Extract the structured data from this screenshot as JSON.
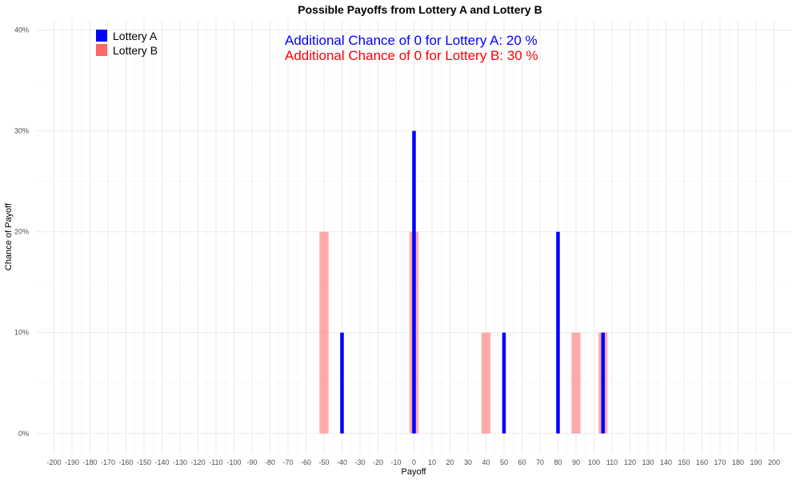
{
  "chart_data": {
    "type": "bar",
    "title": "Possible Payoffs from Lottery A and Lottery B",
    "xlabel": "Payoff",
    "ylabel": "Chance of Payoff",
    "xlim": [
      -210,
      210
    ],
    "ylim": [
      -0.02,
      0.41
    ],
    "x_ticks": [
      -200,
      -190,
      -180,
      -170,
      -160,
      -150,
      -140,
      -130,
      -120,
      -110,
      -100,
      -90,
      -80,
      -70,
      -60,
      -50,
      -40,
      -30,
      -20,
      -10,
      0,
      10,
      20,
      30,
      40,
      50,
      60,
      70,
      80,
      90,
      100,
      110,
      120,
      130,
      140,
      150,
      160,
      170,
      180,
      190,
      200
    ],
    "y_ticks": [
      0,
      0.1,
      0.2,
      0.3,
      0.4
    ],
    "y_tick_labels": [
      "0%",
      "10%",
      "20%",
      "30%",
      "40%"
    ],
    "grid": true,
    "legend_position": "top-left",
    "series": [
      {
        "name": "Lottery A",
        "color": "#0000ff",
        "points": [
          {
            "x": -40,
            "y": 0.1
          },
          {
            "x": 0,
            "y": 0.3
          },
          {
            "x": 50,
            "y": 0.1
          },
          {
            "x": 80,
            "y": 0.2
          },
          {
            "x": 105,
            "y": 0.1
          }
        ]
      },
      {
        "name": "Lottery B",
        "color": "#ff6666",
        "points": [
          {
            "x": -50,
            "y": 0.2
          },
          {
            "x": 0,
            "y": 0.2
          },
          {
            "x": 40,
            "y": 0.1
          },
          {
            "x": 90,
            "y": 0.1
          },
          {
            "x": 105,
            "y": 0.1
          }
        ]
      }
    ],
    "annotations": [
      {
        "text": "Additional Chance of 0 for Lottery A:  20 %",
        "color": "#0000ff"
      },
      {
        "text": "Additional Chance of 0 for Lottery B:  30 %",
        "color": "#ff0000"
      }
    ]
  }
}
